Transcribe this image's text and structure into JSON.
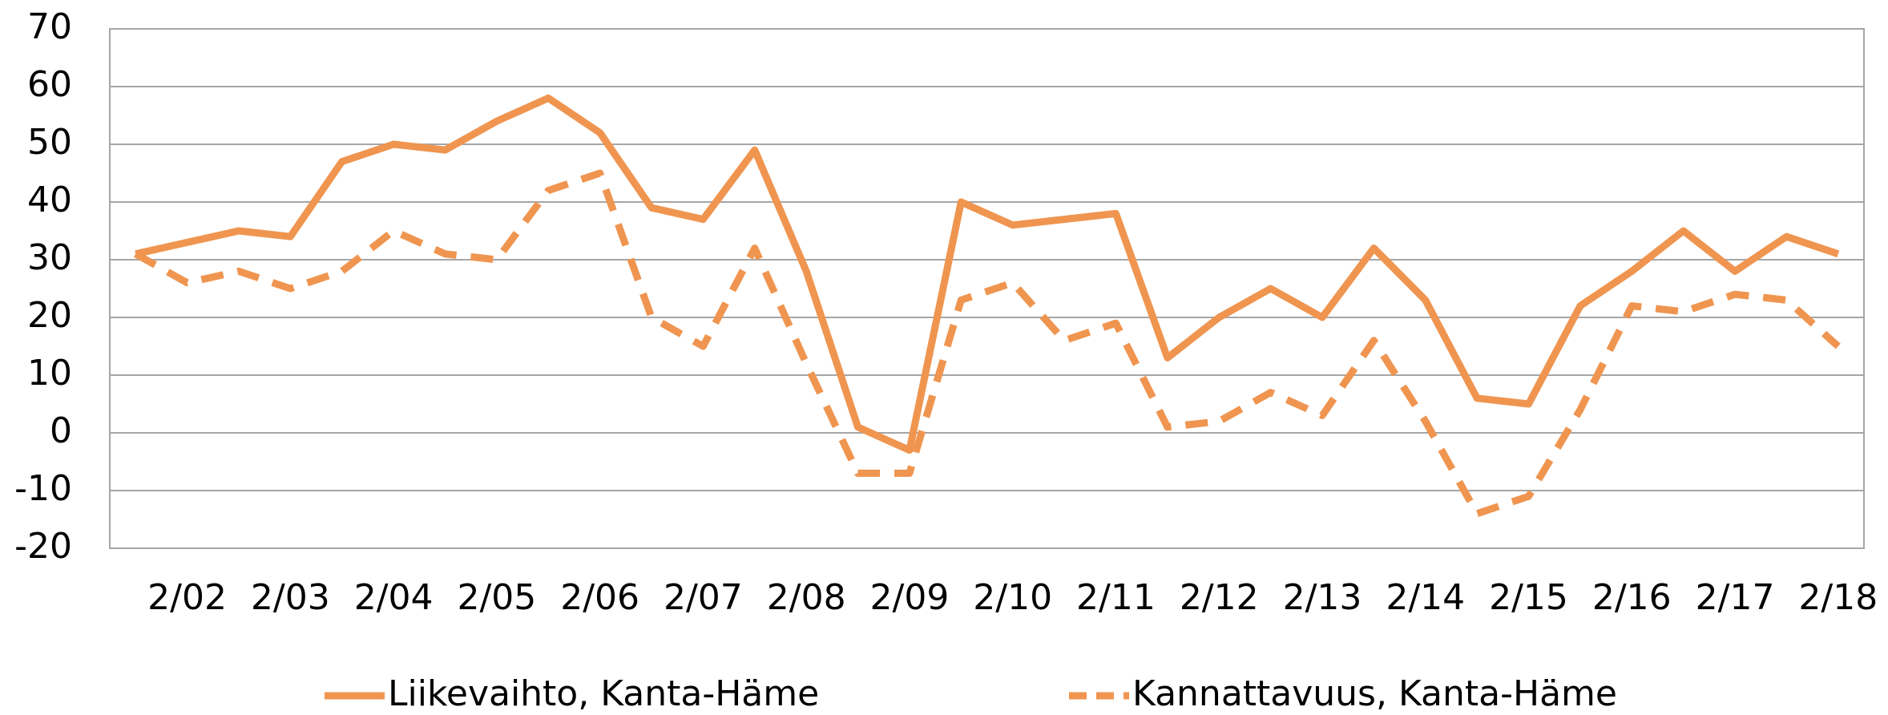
{
  "chart_data": {
    "type": "line",
    "categories": [
      null,
      "2/02",
      null,
      "2/03",
      null,
      "2/04",
      null,
      "2/05",
      null,
      "2/06",
      null,
      "2/07",
      null,
      "2/08",
      null,
      "2/09",
      null,
      "2/10",
      null,
      "2/11",
      null,
      "2/12",
      null,
      "2/13",
      null,
      "2/14",
      null,
      "2/15",
      null,
      "2/16",
      null,
      "2/17",
      null,
      "2/18"
    ],
    "series": [
      {
        "name": "Liikevaihto, Kanta-Häme",
        "color": "#ef9550",
        "dash": "solid",
        "values": [
          31,
          33,
          35,
          34,
          47,
          50,
          49,
          54,
          58,
          52,
          39,
          37,
          49,
          28,
          1,
          -3,
          40,
          36,
          37,
          38,
          13,
          20,
          25,
          20,
          32,
          23,
          6,
          5,
          22,
          28,
          35,
          28,
          34,
          31
        ]
      },
      {
        "name": "Kannattavuus, Kanta-Häme",
        "color": "#ef9550",
        "dash": "dashed",
        "values": [
          31,
          26,
          28,
          25,
          28,
          35,
          31,
          30,
          42,
          45,
          20,
          15,
          32,
          12,
          -7,
          -7,
          23,
          26,
          16,
          19,
          1,
          2,
          7,
          3,
          16,
          2,
          -14,
          -11,
          4,
          22,
          21,
          24,
          23,
          15
        ]
      }
    ],
    "ylim": [
      -20,
      70
    ],
    "yticks": [
      -20,
      -10,
      0,
      10,
      20,
      30,
      40,
      50,
      60,
      70
    ],
    "grid": true,
    "legend": "bottom"
  }
}
